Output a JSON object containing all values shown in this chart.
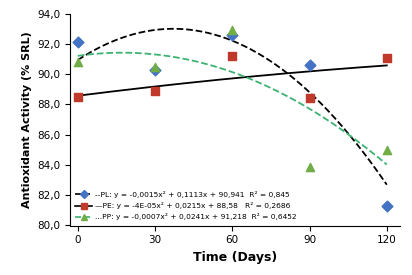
{
  "x_data": [
    0,
    30,
    60,
    90,
    120
  ],
  "PL_y": [
    92.1,
    90.3,
    92.6,
    90.6,
    81.3
  ],
  "PE_y": [
    88.5,
    88.9,
    91.2,
    88.4,
    91.1
  ],
  "PP_y": [
    90.8,
    90.5,
    92.9,
    83.9,
    85.0
  ],
  "PL_coeffs": [
    -0.0015,
    0.1113,
    90.941
  ],
  "PE_coeffs": [
    -4e-05,
    0.0215,
    88.58
  ],
  "PP_coeffs": [
    -0.0007,
    0.0241,
    91.218
  ],
  "PL_color": "#4472C4",
  "PE_color": "#C0392B",
  "PP_color": "#70AD47",
  "PL_line_color": "#000000",
  "PE_line_color": "#000000",
  "PP_line_color": "#3CB371",
  "xlabel": "Time (Days)",
  "ylabel": "Antioxidant Activity (% SRL)",
  "ylim": [
    80.0,
    94.0
  ],
  "xlim": [
    -3,
    125
  ],
  "yticks": [
    80.0,
    82.0,
    84.0,
    86.0,
    88.0,
    90.0,
    92.0,
    94.0
  ],
  "xticks": [
    0,
    30,
    60,
    90,
    120
  ],
  "bg_color": "#FFFFFF",
  "PL_label": "--PL: y = -0,0015x² + 0,1113x + 90,941  R² = 0,845",
  "PE_label": "—PE: y = -4E-05x² + 0,0215x + 88,58   R² = 0,2686",
  "PP_label": "...PP: y = -0,0007x² + 0,0241x + 91,218  R² = 0,6452"
}
